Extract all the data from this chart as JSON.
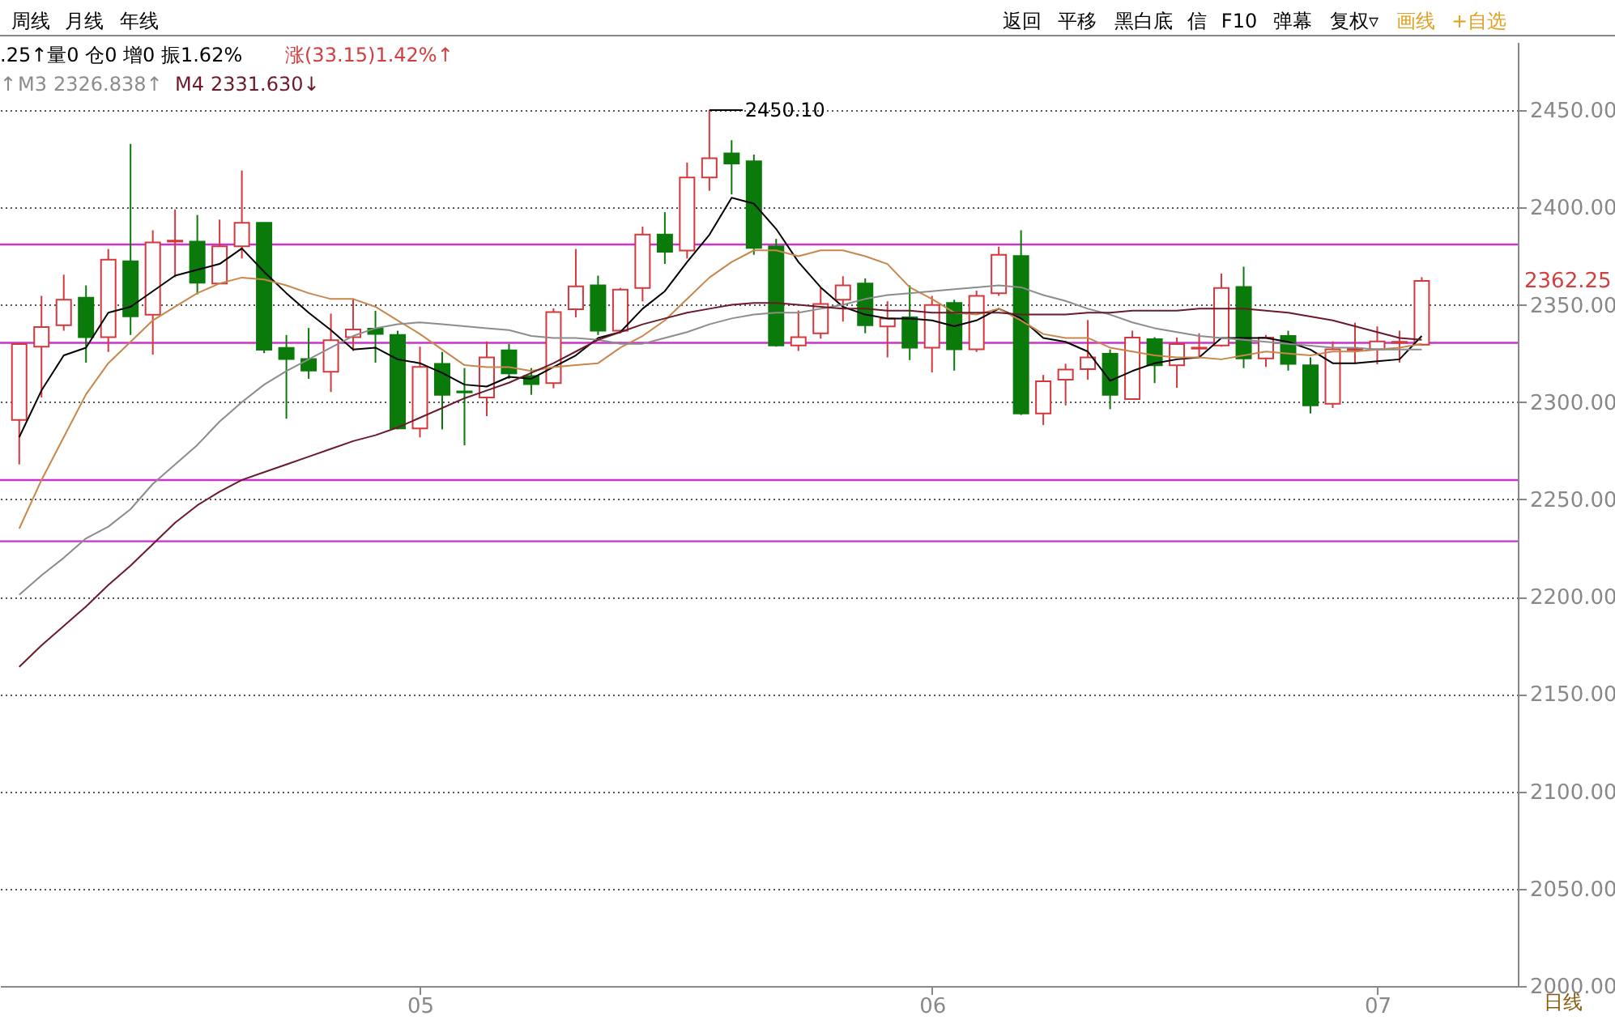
{
  "chart_data": {
    "type": "candlestick",
    "categories": [
      null,
      null,
      null,
      null,
      null,
      null,
      null,
      null,
      null,
      null,
      null,
      null,
      null,
      null,
      null,
      null,
      null,
      null,
      "05",
      null,
      null,
      null,
      null,
      null,
      null,
      null,
      null,
      null,
      null,
      null,
      null,
      null,
      null,
      null,
      null,
      null,
      null,
      null,
      null,
      null,
      null,
      "06",
      null,
      null,
      null,
      null,
      null,
      null,
      null,
      null,
      null,
      null,
      null,
      null,
      null,
      null,
      null,
      null,
      null,
      null,
      null,
      "07",
      null,
      null
    ],
    "ohlc": [
      [
        2290.9,
        2329.9,
        2268,
        2329.9
      ],
      [
        2328.5,
        2354.6,
        2302.4,
        2338.6
      ],
      [
        2339.5,
        2365.5,
        2336.7,
        2352.6
      ],
      [
        2353.7,
        2360,
        2320.3,
        2333.4
      ],
      [
        2333.4,
        2378.7,
        2325.8,
        2373.2
      ],
      [
        2372.4,
        2432.7,
        2334.5,
        2344.1
      ],
      [
        2344.9,
        2388.3,
        2324.4,
        2382
      ],
      [
        2382.5,
        2399,
        2364.2,
        2383
      ],
      [
        2382.5,
        2396.2,
        2355.4,
        2361.4
      ],
      [
        2360.9,
        2393.8,
        2360.9,
        2380.1
      ],
      [
        2380.1,
        2419,
        2373.8,
        2392.1
      ],
      [
        2392.1,
        2392.1,
        2325.2,
        2326.9
      ],
      [
        2327.9,
        2334.5,
        2291.5,
        2322.2
      ],
      [
        2322.2,
        2338.1,
        2312,
        2316.2
      ],
      [
        2315.6,
        2345.5,
        2305.2,
        2331.8
      ],
      [
        2333.4,
        2353.2,
        2326.3,
        2337.3
      ],
      [
        2337.8,
        2346.9,
        2320.3,
        2335.1
      ],
      [
        2334.5,
        2336.7,
        2286,
        2286.5
      ],
      [
        2286.5,
        2328.5,
        2281.9,
        2318.1
      ],
      [
        2319.7,
        2325.8,
        2286,
        2303.8
      ],
      [
        2305.5,
        2317.5,
        2277.8,
        2305
      ],
      [
        2302.4,
        2331.2,
        2292.8,
        2323
      ],
      [
        2326.6,
        2329.9,
        2312,
        2314.8
      ],
      [
        2313.4,
        2317.5,
        2303.8,
        2309.3
      ],
      [
        2309.8,
        2348.2,
        2307.1,
        2346.3
      ],
      [
        2347.7,
        2378.7,
        2343.6,
        2359.5
      ],
      [
        2360,
        2365,
        2334.5,
        2336.7
      ],
      [
        2336.7,
        2358.7,
        2335.4,
        2357.8
      ],
      [
        2358.7,
        2390.2,
        2351.8,
        2386.1
      ],
      [
        2386.1,
        2397.6,
        2371,
        2377.3
      ],
      [
        2377.9,
        2423.1,
        2373.8,
        2415.4
      ],
      [
        2415.4,
        2450.1,
        2408.6,
        2425.3
      ],
      [
        2427.8,
        2434.6,
        2406.7,
        2422.6
      ],
      [
        2423.7,
        2427.2,
        2375.7,
        2379.2
      ],
      [
        2380.1,
        2383.9,
        2328.5,
        2329.1
      ],
      [
        2329.1,
        2347.1,
        2326.3,
        2333.4
      ],
      [
        2335.4,
        2358.7,
        2332.6,
        2350.4
      ],
      [
        2352.6,
        2364.7,
        2341.4,
        2360
      ],
      [
        2360.9,
        2363.6,
        2335.4,
        2339.5
      ],
      [
        2338.9,
        2351.8,
        2323,
        2343
      ],
      [
        2343.6,
        2360,
        2321.6,
        2328
      ],
      [
        2328,
        2354.6,
        2315.3,
        2349.9
      ],
      [
        2351,
        2352.6,
        2316.2,
        2327.1
      ],
      [
        2327.1,
        2357.3,
        2325.8,
        2354.6
      ],
      [
        2355.9,
        2379.8,
        2354.6,
        2375.7
      ],
      [
        2375.1,
        2388.3,
        2293.4,
        2294.2
      ],
      [
        2294.2,
        2314,
        2288.2,
        2310.7
      ],
      [
        2311.5,
        2319.7,
        2298.3,
        2316.7
      ],
      [
        2317,
        2342.2,
        2311.5,
        2323
      ],
      [
        2324.9,
        2327.1,
        2296.4,
        2303.8
      ],
      [
        2301.6,
        2336.7,
        2301.6,
        2333.2
      ],
      [
        2332.3,
        2333.4,
        2309.8,
        2318.9
      ],
      [
        2318.9,
        2333.2,
        2307.4,
        2329.9
      ],
      [
        2327.5,
        2335.4,
        2323.6,
        2328
      ],
      [
        2329.1,
        2366.1,
        2328.5,
        2358.7
      ],
      [
        2359.2,
        2369.6,
        2317.5,
        2322.5
      ],
      [
        2322.5,
        2334.5,
        2318.1,
        2333.2
      ],
      [
        2334,
        2336.7,
        2316.2,
        2319.7
      ],
      [
        2318.9,
        2323,
        2294.2,
        2298.3
      ],
      [
        2299.2,
        2331.2,
        2297,
        2327.1
      ],
      [
        2326.8,
        2340.8,
        2320.3,
        2327.4
      ],
      [
        2327.1,
        2338.9,
        2319.4,
        2331.2
      ],
      [
        2330.5,
        2336.7,
        2320.3,
        2331
      ],
      [
        2329.5,
        2364.2,
        2329.1,
        2362.25
      ]
    ],
    "colors": [
      "#d4383c",
      "#d4383c",
      "#d4383c",
      "#0a7a0a",
      "#d4383c",
      "#0a7a0a",
      "#d4383c",
      "#d4383c",
      "#0a7a0a",
      "#d4383c",
      "#d4383c",
      "#0a7a0a",
      "#0a7a0a",
      "#0a7a0a",
      "#d4383c",
      "#d4383c",
      "#0a7a0a",
      "#0a7a0a",
      "#d4383c",
      "#0a7a0a",
      "#0a7a0a",
      "#d4383c",
      "#0a7a0a",
      "#0a7a0a",
      "#d4383c",
      "#d4383c",
      "#0a7a0a",
      "#d4383c",
      "#d4383c",
      "#0a7a0a",
      "#d4383c",
      "#d4383c",
      "#0a7a0a",
      "#0a7a0a",
      "#0a7a0a",
      "#d4383c",
      "#d4383c",
      "#d4383c",
      "#0a7a0a",
      "#d4383c",
      "#0a7a0a",
      "#d4383c",
      "#0a7a0a",
      "#d4383c",
      "#d4383c",
      "#0a7a0a",
      "#d4383c",
      "#d4383c",
      "#d4383c",
      "#0a7a0a",
      "#d4383c",
      "#0a7a0a",
      "#d4383c",
      "#d4383c",
      "#d4383c",
      "#0a7a0a",
      "#d4383c",
      "#0a7a0a",
      "#0a7a0a",
      "#d4383c",
      "#d4383c",
      "#d4383c",
      "#d4383c",
      "#d4383c"
    ],
    "series": [
      {
        "type": "line",
        "color": "#000000",
        "values": [
          2282,
          2306,
          2324,
          2328,
          2346,
          2349,
          2357,
          2365,
          2368,
          2371,
          2379,
          2367,
          2356,
          2346,
          2337,
          2327,
          2328,
          2322,
          2320,
          2315,
          2309,
          2308,
          2313,
          2312,
          2318,
          2324,
          2333,
          2336,
          2348,
          2357,
          2372,
          2386,
          2405,
          2402,
          2389,
          2372,
          2359,
          2349,
          2345,
          2343,
          2343,
          2342,
          2339,
          2342,
          2348,
          2343,
          2333,
          2331,
          2326,
          2311,
          2316,
          2320,
          2322,
          2323,
          2333,
          2333,
          2333,
          2331,
          2327,
          2320,
          2320,
          2321,
          2322,
          2334
        ]
      },
      {
        "type": "line",
        "color": "#c8874a",
        "values": [
          2235,
          2260,
          2282,
          2304,
          2320,
          2331,
          2342,
          2349,
          2356,
          2361,
          2364,
          2363,
          2360,
          2356,
          2353,
          2353,
          2349,
          2342,
          2335,
          2327,
          2319,
          2318,
          2318,
          2316,
          2318,
          2319,
          2320,
          2328,
          2334,
          2342,
          2353,
          2364,
          2372,
          2378,
          2378,
          2375,
          2378,
          2378,
          2375,
          2371,
          2359,
          2353,
          2346,
          2345,
          2348,
          2342,
          2335,
          2333,
          2333,
          2328,
          2326,
          2324,
          2323,
          2323,
          2322,
          2324,
          2326,
          2325,
          2324,
          2326,
          2326,
          2327,
          2328,
          2330
        ]
      },
      {
        "name": "M3",
        "type": "line",
        "color": "#8c8c8c",
        "values": [
          2201,
          2211,
          2220,
          2230,
          2236,
          2245,
          2258,
          2268,
          2278,
          2290,
          2300,
          2309,
          2316,
          2322,
          2328,
          2334,
          2338,
          2340,
          2341,
          2340,
          2339,
          2338,
          2337,
          2334,
          2333,
          2333,
          2332,
          2330,
          2330,
          2333,
          2336,
          2340,
          2343,
          2345,
          2346,
          2346,
          2348,
          2350,
          2353,
          2355,
          2356,
          2357,
          2358,
          2359,
          2360,
          2359,
          2355,
          2352,
          2348,
          2345,
          2341,
          2338,
          2336,
          2334,
          2333,
          2332,
          2331,
          2330,
          2329,
          2328,
          2328,
          2327,
          2327,
          2327
        ]
      },
      {
        "name": "M4",
        "type": "line",
        "color": "#6b1a2c",
        "values": [
          2164,
          2175,
          2185,
          2195,
          2206,
          2216,
          2227,
          2238,
          2247,
          2254,
          2260,
          2264,
          2268,
          2272,
          2276,
          2280,
          2283,
          2287,
          2292,
          2297,
          2302,
          2306,
          2310,
          2315,
          2320,
          2326,
          2332,
          2336,
          2340,
          2343,
          2346,
          2348,
          2350,
          2351,
          2351,
          2350,
          2349,
          2348,
          2348,
          2347,
          2347,
          2346,
          2346,
          2346,
          2346,
          2345,
          2345,
          2345,
          2346,
          2346,
          2347,
          2347,
          2347,
          2348,
          2348,
          2348,
          2347,
          2346,
          2344,
          2342,
          2339,
          2336,
          2333,
          2332
        ]
      }
    ],
    "ylim": [
      2000,
      2485
    ],
    "yticks": [
      {
        "value": 2000,
        "label": "2000.00"
      },
      {
        "value": 2050,
        "label": "2050.00"
      },
      {
        "value": 2100,
        "label": "2100.00"
      },
      {
        "value": 2150,
        "label": "2150.00"
      },
      {
        "value": 2200,
        "label": "2200.00"
      },
      {
        "value": 2250,
        "label": "2250.00"
      },
      {
        "value": 2300,
        "label": "2300.00"
      },
      {
        "value": 2350,
        "label": "2350.00"
      },
      {
        "value": 2400,
        "label": "2400.00"
      },
      {
        "value": 2450,
        "label": "2450.00"
      }
    ],
    "grid": "y",
    "ref_lines": [
      {
        "axis": "y",
        "value": 2381,
        "color": "#cc33cc"
      },
      {
        "axis": "y",
        "value": 2330.5,
        "color": "#cc33cc"
      },
      {
        "axis": "y",
        "value": 2260,
        "color": "#cc33cc"
      },
      {
        "axis": "y",
        "value": 2228.5,
        "color": "#cc33cc"
      }
    ],
    "annotations": [
      "2450.10",
      "2362.25",
      "周线",
      "月线",
      "年线",
      "返回",
      "平移",
      "黑白底",
      "信",
      "F10",
      "弹幕",
      "复权▿",
      "画线",
      "+自选",
      ".25↑量0  仓0  增0  振1.62%",
      "涨(33.15)1.42%↑",
      "↑",
      "2326.838↑",
      "2331.630↓",
      "日线"
    ]
  }
}
